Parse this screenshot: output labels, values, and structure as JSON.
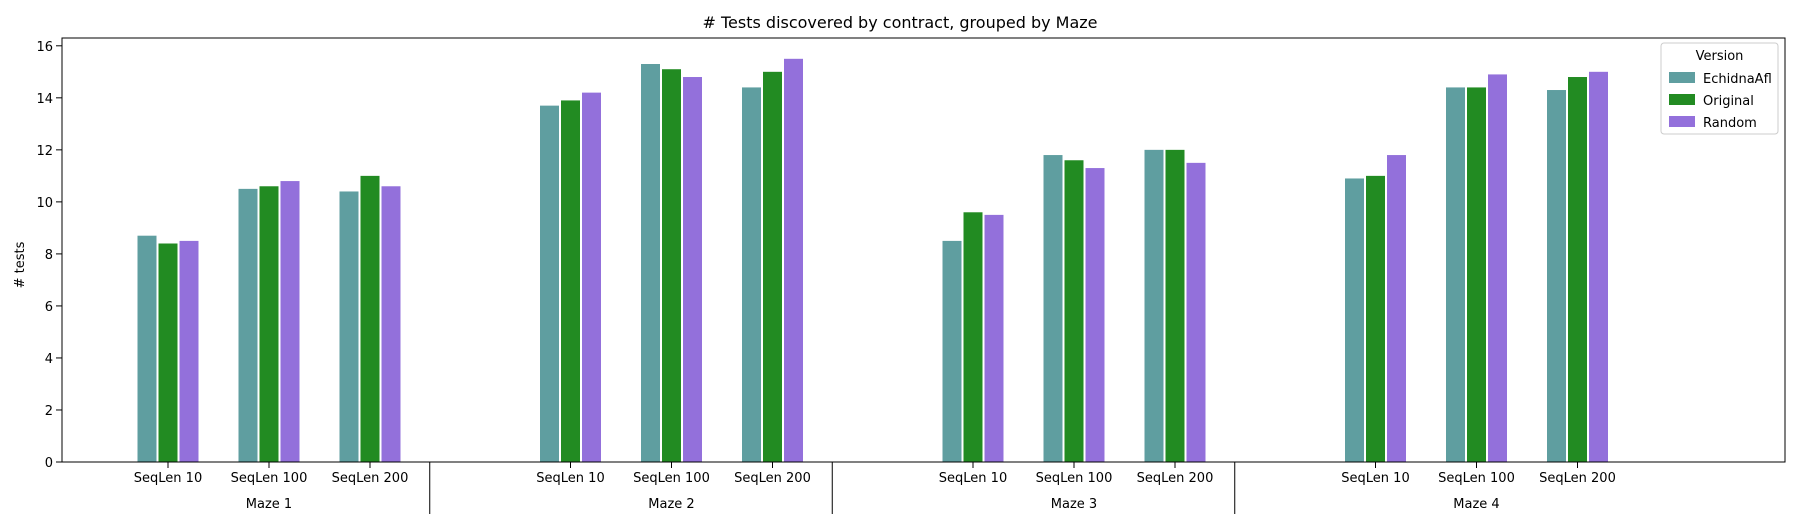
{
  "chart_data": {
    "type": "bar",
    "title": "# Tests discovered by contract, grouped by Maze",
    "xlabel": "",
    "ylabel": "# tests",
    "ylim": [
      0,
      16.3
    ],
    "yticks": [
      0,
      2,
      4,
      6,
      8,
      10,
      12,
      14,
      16
    ],
    "grid": false,
    "legend": {
      "title": "Version",
      "placement": "top-right"
    },
    "groups": [
      "Maze 1",
      "Maze 2",
      "Maze 3",
      "Maze 4"
    ],
    "categories": [
      "SeqLen 10",
      "SeqLen 100",
      "SeqLen 200"
    ],
    "series": [
      {
        "name": "EchidnaAfl",
        "color": "#5f9ea0",
        "values": [
          [
            8.7,
            10.5,
            10.4
          ],
          [
            13.7,
            15.3,
            14.4
          ],
          [
            8.5,
            11.8,
            12.0
          ],
          [
            10.9,
            14.4,
            14.3
          ]
        ]
      },
      {
        "name": "Original",
        "color": "#228b22",
        "values": [
          [
            8.4,
            10.6,
            11.0
          ],
          [
            13.9,
            15.1,
            15.0
          ],
          [
            9.6,
            11.6,
            12.0
          ],
          [
            11.0,
            14.4,
            14.8
          ]
        ]
      },
      {
        "name": "Random",
        "color": "#9370db",
        "values": [
          [
            8.5,
            10.8,
            10.6
          ],
          [
            14.2,
            14.8,
            15.5
          ],
          [
            9.5,
            11.3,
            11.5
          ],
          [
            11.8,
            14.9,
            15.0
          ]
        ]
      }
    ]
  }
}
